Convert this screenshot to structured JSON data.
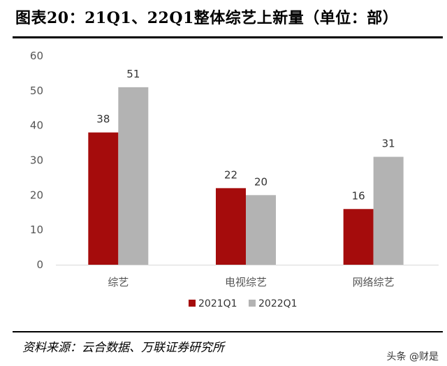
{
  "header": {
    "title": "图表20：21Q1、22Q1整体综艺上新量（单位：部）"
  },
  "footer": {
    "source": "资料来源：云合数据、万联证券研究所",
    "watermark": "头条 @财是"
  },
  "colors": {
    "series_2021": "#a50c0c",
    "series_2022": "#b3b3b3",
    "axis": "#d9d9d9",
    "text": "#555555"
  },
  "chart_data": {
    "type": "bar",
    "title": "",
    "xlabel": "",
    "ylabel": "",
    "ylim": [
      0,
      60
    ],
    "yticks": [
      0,
      10,
      20,
      30,
      40,
      50,
      60
    ],
    "grid": false,
    "legend_position": "bottom",
    "categories": [
      "综艺",
      "电视综艺",
      "网络综艺"
    ],
    "series": [
      {
        "name": "2021Q1",
        "values": [
          38,
          22,
          16
        ],
        "color": "#a50c0c"
      },
      {
        "name": "2022Q1",
        "values": [
          51,
          20,
          31
        ],
        "color": "#b3b3b3"
      }
    ]
  }
}
